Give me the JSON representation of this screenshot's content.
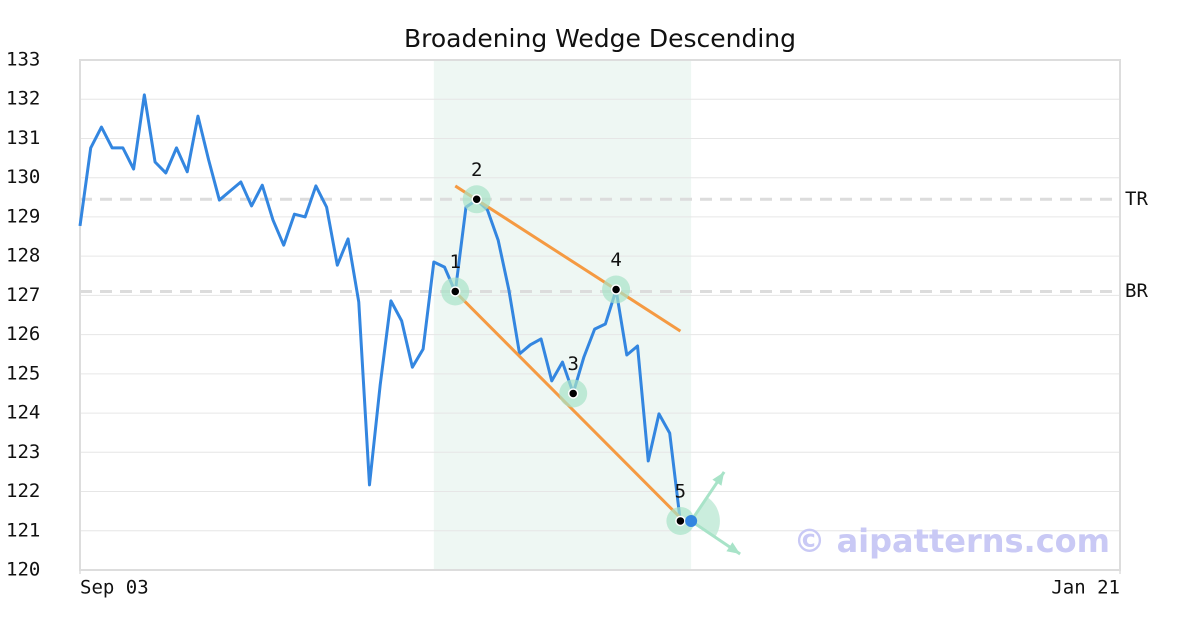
{
  "chart_data": {
    "type": "line",
    "title": "Broadening Wedge Descending",
    "series": [
      {
        "color": "#3386e0",
        "values": [
          128.77,
          130.76,
          131.29,
          130.76,
          130.76,
          130.22,
          132.11,
          130.4,
          130.12,
          130.76,
          130.15,
          131.57,
          130.45,
          129.43,
          129.66,
          129.89,
          129.28,
          129.81,
          128.92,
          128.28,
          129.07,
          129.0,
          129.79,
          129.25,
          127.77,
          128.44,
          126.83,
          122.17,
          124.72,
          126.86,
          126.35,
          125.17,
          125.63,
          127.85,
          127.72,
          127.09,
          129.25,
          129.43,
          129.18,
          128.41,
          127.14,
          125.51,
          125.74,
          125.89,
          124.82,
          125.3,
          124.51,
          125.43,
          126.14,
          126.27,
          127.14,
          125.48,
          125.71,
          122.78,
          123.98,
          123.49,
          121.22
        ]
      }
    ],
    "xlim": [
      0,
      97
    ],
    "xticks": [
      {
        "value": 0,
        "label": "Sep 03"
      },
      {
        "value": 97,
        "label": "Jan 21"
      }
    ],
    "ylim": [
      120,
      133
    ],
    "yticks": [
      120,
      121,
      122,
      123,
      124,
      125,
      126,
      127,
      128,
      129,
      130,
      131,
      132,
      133
    ],
    "grid": true,
    "highlight": [
      33,
      57
    ],
    "levels": [
      {
        "label": "TR",
        "value": 129.45
      },
      {
        "label": "BR",
        "value": 127.1
      }
    ],
    "trendlines": [
      {
        "color": "#f59a42",
        "x": [
          35,
          56
        ],
        "values": [
          129.79,
          126.09
        ]
      },
      {
        "color": "#f59a42",
        "x": [
          35,
          56
        ],
        "values": [
          127.09,
          121.33
        ]
      }
    ],
    "pivots": [
      {
        "label": "1",
        "x": 35,
        "value": 127.1
      },
      {
        "label": "2",
        "x": 37,
        "value": 129.45
      },
      {
        "label": "3",
        "x": 46,
        "value": 124.5
      },
      {
        "label": "4",
        "x": 50,
        "value": 127.15
      },
      {
        "label": "5",
        "x": 56,
        "value": 121.25
      }
    ],
    "current": {
      "x": 57,
      "value": 121.25
    },
    "watermark": "© aipatterns.com"
  }
}
